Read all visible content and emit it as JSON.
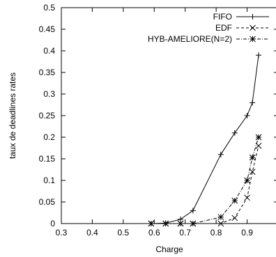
{
  "chart_data": {
    "type": "line",
    "title": "",
    "xlabel": "Charge",
    "ylabel": "taux de deadlines rates",
    "xlim": [
      0.3,
      1.0
    ],
    "ylim": [
      0,
      0.5
    ],
    "xticks": [
      0.3,
      0.4,
      0.5,
      0.6,
      0.7,
      0.8,
      0.9
    ],
    "xtick_labels": [
      "0.3",
      "0.4",
      "0.5",
      "0.6",
      "0.7",
      "0.8",
      "0.9"
    ],
    "yticks": [
      0,
      0.05,
      0.1,
      0.15,
      0.2,
      0.25,
      0.3,
      0.35,
      0.4,
      0.45,
      0.5
    ],
    "ytick_labels": [
      "0",
      "0.05",
      "0.1",
      "0.15",
      "0.2",
      "0.25",
      "0.3",
      "0.35",
      "0.4",
      "0.45",
      "0.5"
    ],
    "grid": false,
    "legend_position": "top-right",
    "series": [
      {
        "name": "FIFO",
        "line": "solid",
        "marker": "plus",
        "color": "#000000",
        "x": [
          0.59,
          0.637,
          0.685,
          0.725,
          0.815,
          0.86,
          0.9,
          0.917,
          0.937
        ],
        "y": [
          0,
          0.001,
          0.01,
          0.03,
          0.16,
          0.21,
          0.25,
          0.28,
          0.39
        ]
      },
      {
        "name": "EDF",
        "line": "dashed",
        "marker": "cross",
        "color": "#000000",
        "x": [
          0.59,
          0.637,
          0.685,
          0.725,
          0.815,
          0.86,
          0.9,
          0.917,
          0.937
        ],
        "y": [
          0,
          0,
          0,
          0,
          0,
          0.013,
          0.06,
          0.12,
          0.18
        ]
      },
      {
        "name": "HYB-AMELIORE(N=2)",
        "line": "dashdot",
        "marker": "star",
        "color": "#000000",
        "x": [
          0.59,
          0.637,
          0.685,
          0.725,
          0.815,
          0.86,
          0.9,
          0.917,
          0.937
        ],
        "y": [
          0,
          0,
          0,
          0,
          0.015,
          0.053,
          0.1,
          0.153,
          0.2
        ]
      }
    ]
  }
}
